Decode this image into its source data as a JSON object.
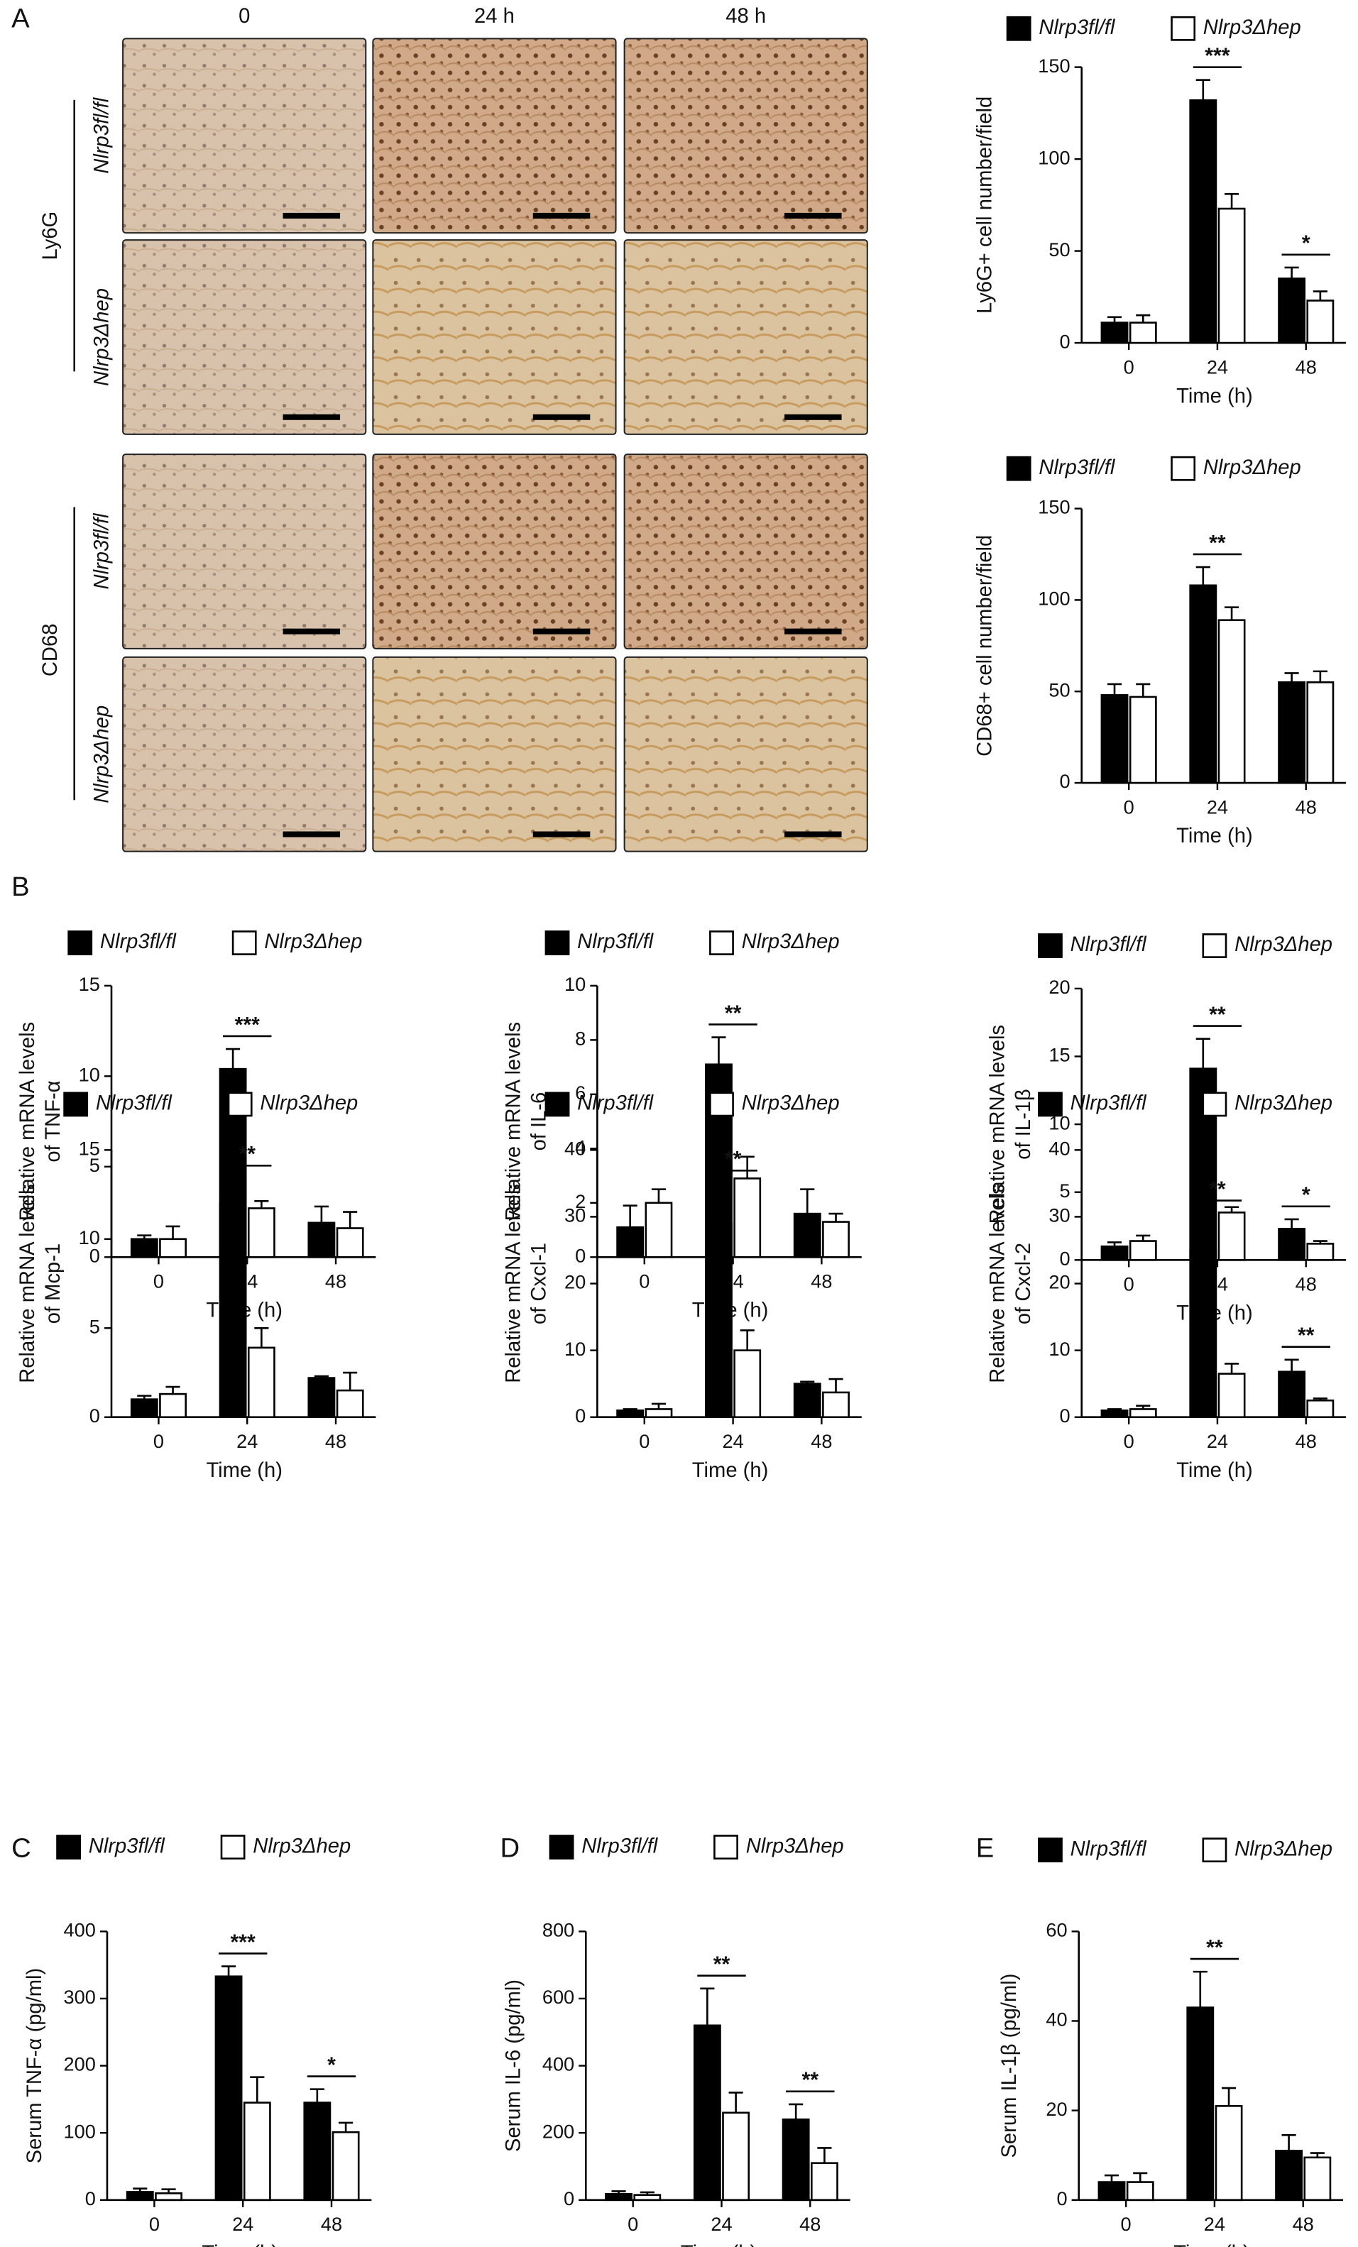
{
  "panel_labels": [
    "A",
    "B",
    "C",
    "D",
    "E"
  ],
  "micrographs": {
    "columns": [
      "0",
      "24 h",
      "48 h"
    ],
    "stains": [
      "Ly6G",
      "CD68"
    ],
    "genotypes": [
      "Nlrp3fl/fl",
      "Nlrp3Δhep"
    ]
  },
  "chart_data": [
    {
      "type": "bar",
      "ylabel": [
        "Ly6G+ cell number/field"
      ],
      "xlabel": "Time (h)",
      "categories": [
        "0",
        "24",
        "48"
      ],
      "series": [
        {
          "name": "Nlrp3fl/fl",
          "color": "#000000",
          "values": [
            11,
            132,
            35
          ],
          "errors": [
            3,
            11,
            6
          ]
        },
        {
          "name": "Nlrp3Δhep",
          "color": "#ffffff",
          "values": [
            11,
            73,
            23
          ],
          "errors": [
            4,
            8,
            5
          ]
        }
      ],
      "ylim": [
        0,
        150
      ],
      "yticks": [
        0,
        50,
        100,
        150
      ],
      "annotations": [
        {
          "category": "24",
          "text": "***"
        },
        {
          "category": "48",
          "text": "*"
        }
      ]
    },
    {
      "type": "bar",
      "ylabel": [
        "CD68+ cell number/field"
      ],
      "xlabel": "Time (h)",
      "categories": [
        "0",
        "24",
        "48"
      ],
      "series": [
        {
          "name": "Nlrp3fl/fl",
          "color": "#000000",
          "values": [
            48,
            108,
            55
          ],
          "errors": [
            6,
            10,
            5
          ]
        },
        {
          "name": "Nlrp3Δhep",
          "color": "#ffffff",
          "values": [
            47,
            89,
            55
          ],
          "errors": [
            7,
            7,
            6
          ]
        }
      ],
      "ylim": [
        0,
        150
      ],
      "yticks": [
        0,
        50,
        100,
        150
      ],
      "annotations": [
        {
          "category": "24",
          "text": "**"
        }
      ]
    },
    {
      "type": "bar",
      "ylabel": [
        "Relative mRNA levels",
        "of TNF-α"
      ],
      "xlabel": "Time (h)",
      "categories": [
        "0",
        "24",
        "48"
      ],
      "series": [
        {
          "name": "Nlrp3fl/fl",
          "color": "#000000",
          "values": [
            1.0,
            10.4,
            1.9
          ],
          "errors": [
            0.2,
            1.1,
            0.9
          ]
        },
        {
          "name": "Nlrp3Δhep",
          "color": "#ffffff",
          "values": [
            1.0,
            2.7,
            1.6
          ],
          "errors": [
            0.7,
            0.4,
            0.9
          ]
        }
      ],
      "ylim": [
        0,
        15
      ],
      "yticks": [
        0,
        5,
        10,
        15
      ],
      "annotations": [
        {
          "category": "24",
          "text": "***"
        }
      ]
    },
    {
      "type": "bar",
      "ylabel": [
        "Relative mRNA levels",
        "of IL-6"
      ],
      "xlabel": "Time (h)",
      "categories": [
        "0",
        "24",
        "48"
      ],
      "series": [
        {
          "name": "Nlrp3fl/fl",
          "color": "#000000",
          "values": [
            1.1,
            7.1,
            1.6
          ],
          "errors": [
            0.8,
            1.0,
            0.9
          ]
        },
        {
          "name": "Nlrp3Δhep",
          "color": "#ffffff",
          "values": [
            2.0,
            2.9,
            1.3
          ],
          "errors": [
            0.5,
            0.8,
            0.3
          ]
        }
      ],
      "ylim": [
        0,
        10
      ],
      "yticks": [
        0,
        2,
        4,
        6,
        8,
        10
      ],
      "annotations": [
        {
          "category": "24",
          "text": "**"
        }
      ]
    },
    {
      "type": "bar",
      "ylabel": [
        "Relative mRNA levels",
        "of IL-1β"
      ],
      "xlabel": "Time (h)",
      "categories": [
        "0",
        "24",
        "48"
      ],
      "series": [
        {
          "name": "Nlrp3fl/fl",
          "color": "#000000",
          "values": [
            1.0,
            14.1,
            2.3
          ],
          "errors": [
            0.3,
            2.2,
            0.7
          ]
        },
        {
          "name": "Nlrp3Δhep",
          "color": "#ffffff",
          "values": [
            1.4,
            3.5,
            1.2
          ],
          "errors": [
            0.4,
            0.4,
            0.2
          ]
        }
      ],
      "ylim": [
        0,
        20
      ],
      "yticks": [
        0,
        5,
        10,
        15,
        20
      ],
      "annotations": [
        {
          "category": "24",
          "text": "**"
        },
        {
          "category": "48",
          "text": "*"
        }
      ]
    },
    {
      "type": "bar",
      "ylabel": [
        "Relative mRNA levels",
        "of Mcp-1"
      ],
      "xlabel": "Time (h)",
      "categories": [
        "0",
        "24",
        "48"
      ],
      "series": [
        {
          "name": "Nlrp3fl/fl",
          "color": "#000000",
          "values": [
            1.0,
            12.0,
            2.2
          ],
          "errors": [
            0.2,
            1.4,
            0.1
          ]
        },
        {
          "name": "Nlrp3Δhep",
          "color": "#ffffff",
          "values": [
            1.3,
            3.9,
            1.5
          ],
          "errors": [
            0.4,
            1.1,
            1.0
          ]
        }
      ],
      "ylim": [
        0,
        15
      ],
      "yticks": [
        0,
        5,
        10,
        15
      ],
      "annotations": [
        {
          "category": "24",
          "text": "**"
        }
      ]
    },
    {
      "type": "bar",
      "ylabel": [
        "Relative mRNA levels",
        "of Cxcl-1"
      ],
      "xlabel": "Time (h)",
      "categories": [
        "0",
        "24",
        "48"
      ],
      "series": [
        {
          "name": "Nlrp3fl/fl",
          "color": "#000000",
          "values": [
            1.0,
            29,
            5.0
          ],
          "errors": [
            0.2,
            6,
            0.3
          ]
        },
        {
          "name": "Nlrp3Δhep",
          "color": "#ffffff",
          "values": [
            1.2,
            10,
            3.7
          ],
          "errors": [
            0.8,
            3,
            2.0
          ]
        }
      ],
      "ylim": [
        0,
        40
      ],
      "yticks": [
        0,
        10,
        20,
        30,
        40
      ],
      "annotations": [
        {
          "category": "24",
          "text": "**"
        }
      ]
    },
    {
      "type": "bar",
      "ylabel": [
        "Relative mRNA levels",
        "of Cxcl-2"
      ],
      "xlabel": "Time (h)",
      "categories": [
        "0",
        "24",
        "48"
      ],
      "series": [
        {
          "name": "Nlrp3fl/fl",
          "color": "#000000",
          "values": [
            1.0,
            25,
            6.8
          ],
          "errors": [
            0.2,
            5.5,
            1.8
          ]
        },
        {
          "name": "Nlrp3Δhep",
          "color": "#ffffff",
          "values": [
            1.2,
            6.5,
            2.5
          ],
          "errors": [
            0.5,
            1.5,
            0.3
          ]
        }
      ],
      "ylim": [
        0,
        40
      ],
      "yticks": [
        0,
        10,
        20,
        30,
        40
      ],
      "annotations": [
        {
          "category": "24",
          "text": "**"
        },
        {
          "category": "48",
          "text": "**"
        }
      ]
    },
    {
      "type": "bar",
      "ylabel": [
        "Serum TNF-α (pg/ml)"
      ],
      "xlabel": "Time (h)",
      "categories": [
        "0",
        "24",
        "48"
      ],
      "series": [
        {
          "name": "Nlrp3fl/fl",
          "color": "#000000",
          "values": [
            12,
            333,
            145
          ],
          "errors": [
            5,
            15,
            20
          ]
        },
        {
          "name": "Nlrp3Δhep",
          "color": "#ffffff",
          "values": [
            10,
            145,
            101
          ],
          "errors": [
            6,
            38,
            14
          ]
        }
      ],
      "ylim": [
        0,
        400
      ],
      "yticks": [
        0,
        100,
        200,
        300,
        400
      ],
      "annotations": [
        {
          "category": "24",
          "text": "***"
        },
        {
          "category": "48",
          "text": "*"
        }
      ]
    },
    {
      "type": "bar",
      "ylabel": [
        "Serum IL-6 (pg/ml)"
      ],
      "xlabel": "Time (h)",
      "categories": [
        "0",
        "24",
        "48"
      ],
      "series": [
        {
          "name": "Nlrp3fl/fl",
          "color": "#000000",
          "values": [
            18,
            520,
            240
          ],
          "errors": [
            8,
            110,
            45
          ]
        },
        {
          "name": "Nlrp3Δhep",
          "color": "#ffffff",
          "values": [
            15,
            260,
            110
          ],
          "errors": [
            8,
            60,
            45
          ]
        }
      ],
      "ylim": [
        0,
        800
      ],
      "yticks": [
        0,
        200,
        400,
        600,
        800
      ],
      "annotations": [
        {
          "category": "24",
          "text": "**"
        },
        {
          "category": "48",
          "text": "**"
        }
      ]
    },
    {
      "type": "bar",
      "ylabel": [
        "Serum IL-1β (pg/ml)"
      ],
      "xlabel": "Time (h)",
      "categories": [
        "0",
        "24",
        "48"
      ],
      "series": [
        {
          "name": "Nlrp3fl/fl",
          "color": "#000000",
          "values": [
            4,
            43,
            11
          ],
          "errors": [
            1.5,
            8,
            3.5
          ]
        },
        {
          "name": "Nlrp3Δhep",
          "color": "#ffffff",
          "values": [
            4,
            21,
            9.5
          ],
          "errors": [
            2,
            4,
            1
          ]
        }
      ],
      "ylim": [
        0,
        60
      ],
      "yticks": [
        0,
        20,
        40,
        60
      ],
      "annotations": [
        {
          "category": "24",
          "text": "**"
        }
      ]
    }
  ]
}
